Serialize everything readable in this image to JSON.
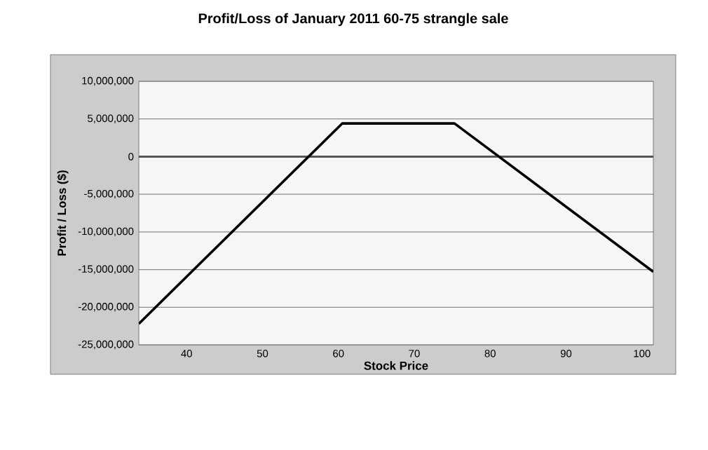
{
  "chart_data": {
    "type": "line",
    "title": "Profit/Loss of January 2011 60-75 strangle sale",
    "xlabel": "Stock Price",
    "ylabel": "Profit / Loss ($)",
    "x": [
      33.7,
      60.5,
      75.3,
      101.5
    ],
    "series": [
      {
        "color": "#000000",
        "values": [
          -22200000,
          4400000,
          4400000,
          -15300000
        ]
      }
    ],
    "xlim": [
      33.7,
      101.5
    ],
    "xticks": [
      40,
      50,
      60,
      70,
      80,
      90,
      100
    ],
    "ylim": [
      -25000000,
      10000000
    ],
    "yticks": [
      {
        "value": -25000000,
        "label": "-25,000,000"
      },
      {
        "value": -20000000,
        "label": "-20,000,000"
      },
      {
        "value": -15000000,
        "label": "-15,000,000"
      },
      {
        "value": -10000000,
        "label": "-10,000,000"
      },
      {
        "value": -5000000,
        "label": "-5,000,000"
      },
      {
        "value": 0,
        "label": "0"
      },
      {
        "value": 5000000,
        "label": "5,000,000"
      },
      {
        "value": 10000000,
        "label": "10,000,000"
      }
    ],
    "ref_lines": [
      {
        "axis": "y",
        "value": 0,
        "color": "#555555"
      }
    ],
    "grid": "y",
    "marker": "none",
    "line_style": "solid"
  }
}
